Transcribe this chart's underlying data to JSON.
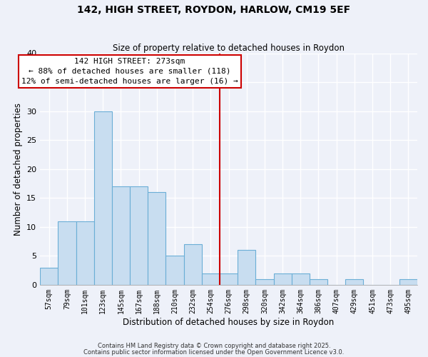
{
  "title": "142, HIGH STREET, ROYDON, HARLOW, CM19 5EF",
  "subtitle": "Size of property relative to detached houses in Roydon",
  "xlabel": "Distribution of detached houses by size in Roydon",
  "ylabel": "Number of detached properties",
  "bar_labels": [
    "57sqm",
    "79sqm",
    "101sqm",
    "123sqm",
    "145sqm",
    "167sqm",
    "188sqm",
    "210sqm",
    "232sqm",
    "254sqm",
    "276sqm",
    "298sqm",
    "320sqm",
    "342sqm",
    "364sqm",
    "386sqm",
    "407sqm",
    "429sqm",
    "451sqm",
    "473sqm",
    "495sqm"
  ],
  "bar_values": [
    3,
    11,
    11,
    30,
    17,
    17,
    16,
    5,
    7,
    2,
    2,
    6,
    1,
    2,
    2,
    1,
    0,
    1,
    0,
    0,
    1
  ],
  "bar_color": "#c8ddf0",
  "bar_edge_color": "#6baed6",
  "vline_color": "#cc0000",
  "annotation_title": "142 HIGH STREET: 273sqm",
  "annotation_line1": "← 88% of detached houses are smaller (118)",
  "annotation_line2": "12% of semi-detached houses are larger (16) →",
  "annotation_box_facecolor": "#ffffff",
  "annotation_box_edgecolor": "#cc0000",
  "ylim": [
    0,
    40
  ],
  "yticks": [
    0,
    5,
    10,
    15,
    20,
    25,
    30,
    35,
    40
  ],
  "background_color": "#eef1f9",
  "grid_color": "#ffffff",
  "footnote1": "Contains HM Land Registry data © Crown copyright and database right 2025.",
  "footnote2": "Contains public sector information licensed under the Open Government Licence v3.0."
}
